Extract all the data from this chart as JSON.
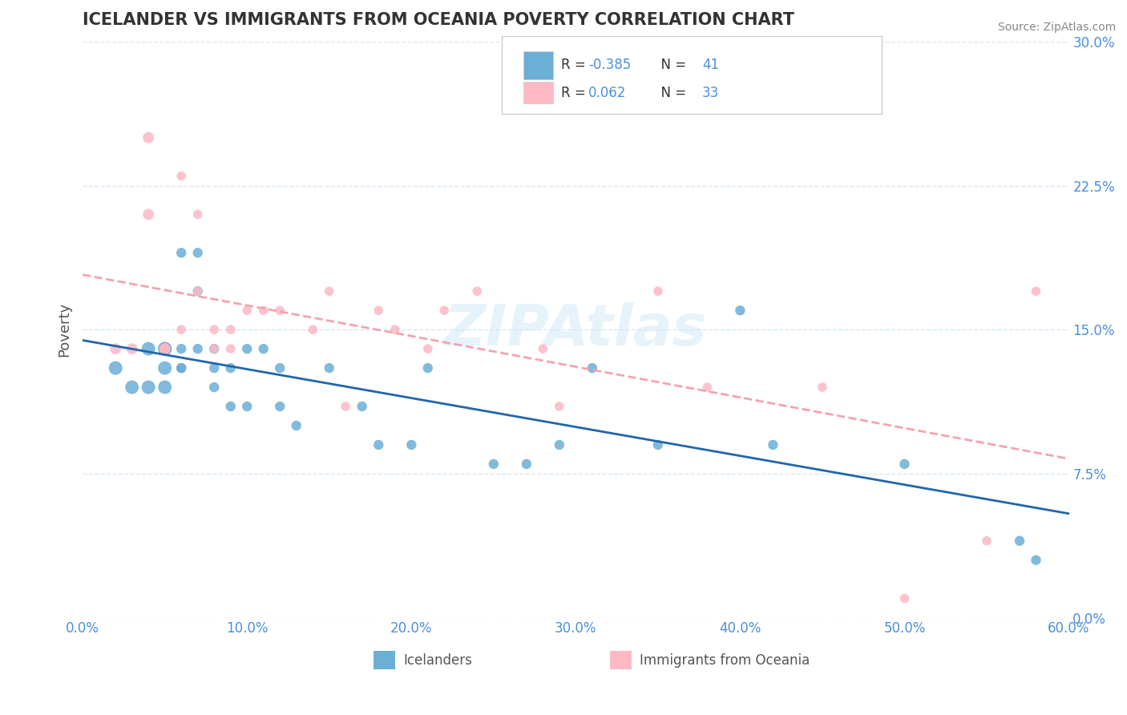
{
  "title": "ICELANDER VS IMMIGRANTS FROM OCEANIA POVERTY CORRELATION CHART",
  "source": "Source: ZipAtlas.com",
  "xlabel": "",
  "ylabel": "Poverty",
  "xlim": [
    0.0,
    0.6
  ],
  "ylim": [
    0.0,
    0.3
  ],
  "xticks": [
    0.0,
    0.1,
    0.2,
    0.3,
    0.4,
    0.5,
    0.6
  ],
  "xticklabels": [
    "0.0%",
    "10.0%",
    "20.0%",
    "30.0%",
    "40.0%",
    "50.0%",
    "60.0%"
  ],
  "yticks": [
    0.0,
    0.075,
    0.15,
    0.225,
    0.3
  ],
  "yticklabels": [
    "0.0%",
    "7.5%",
    "15.0%",
    "22.5%",
    "30.0%"
  ],
  "blue_color": "#6baed6",
  "pink_color": "#fcb9c4",
  "blue_line_color": "#2166ac",
  "pink_line_color": "#f4a4b0",
  "watermark": "ZIPAtlas",
  "legend_R_blue": "-0.385",
  "legend_N_blue": "41",
  "legend_R_pink": "0.062",
  "legend_N_pink": "33",
  "blue_scatter_x": [
    0.02,
    0.03,
    0.04,
    0.04,
    0.05,
    0.05,
    0.05,
    0.05,
    0.06,
    0.06,
    0.06,
    0.06,
    0.07,
    0.07,
    0.07,
    0.08,
    0.08,
    0.08,
    0.09,
    0.09,
    0.1,
    0.1,
    0.11,
    0.12,
    0.12,
    0.13,
    0.15,
    0.17,
    0.18,
    0.2,
    0.21,
    0.25,
    0.27,
    0.29,
    0.31,
    0.35,
    0.4,
    0.42,
    0.5,
    0.57,
    0.58
  ],
  "blue_scatter_y": [
    0.13,
    0.12,
    0.12,
    0.14,
    0.12,
    0.13,
    0.14,
    0.14,
    0.13,
    0.14,
    0.13,
    0.19,
    0.17,
    0.14,
    0.19,
    0.13,
    0.14,
    0.12,
    0.13,
    0.11,
    0.14,
    0.11,
    0.14,
    0.11,
    0.13,
    0.1,
    0.13,
    0.11,
    0.09,
    0.09,
    0.13,
    0.08,
    0.08,
    0.09,
    0.13,
    0.09,
    0.16,
    0.09,
    0.08,
    0.04,
    0.03
  ],
  "pink_scatter_x": [
    0.02,
    0.03,
    0.04,
    0.04,
    0.05,
    0.05,
    0.06,
    0.06,
    0.07,
    0.07,
    0.08,
    0.08,
    0.09,
    0.09,
    0.1,
    0.11,
    0.12,
    0.14,
    0.15,
    0.16,
    0.18,
    0.19,
    0.21,
    0.22,
    0.24,
    0.28,
    0.29,
    0.35,
    0.38,
    0.45,
    0.5,
    0.55,
    0.58
  ],
  "pink_scatter_y": [
    0.14,
    0.14,
    0.21,
    0.25,
    0.14,
    0.14,
    0.23,
    0.15,
    0.21,
    0.17,
    0.14,
    0.15,
    0.14,
    0.15,
    0.16,
    0.16,
    0.16,
    0.15,
    0.17,
    0.11,
    0.16,
    0.15,
    0.14,
    0.16,
    0.17,
    0.14,
    0.11,
    0.17,
    0.12,
    0.12,
    0.01,
    0.04,
    0.17
  ],
  "grid_color": "#c6dbef",
  "grid_alpha": 0.7,
  "background_color": "#ffffff",
  "title_color": "#333333",
  "tick_color": "#4a90d9",
  "legend_value_color": "#4a90d9"
}
